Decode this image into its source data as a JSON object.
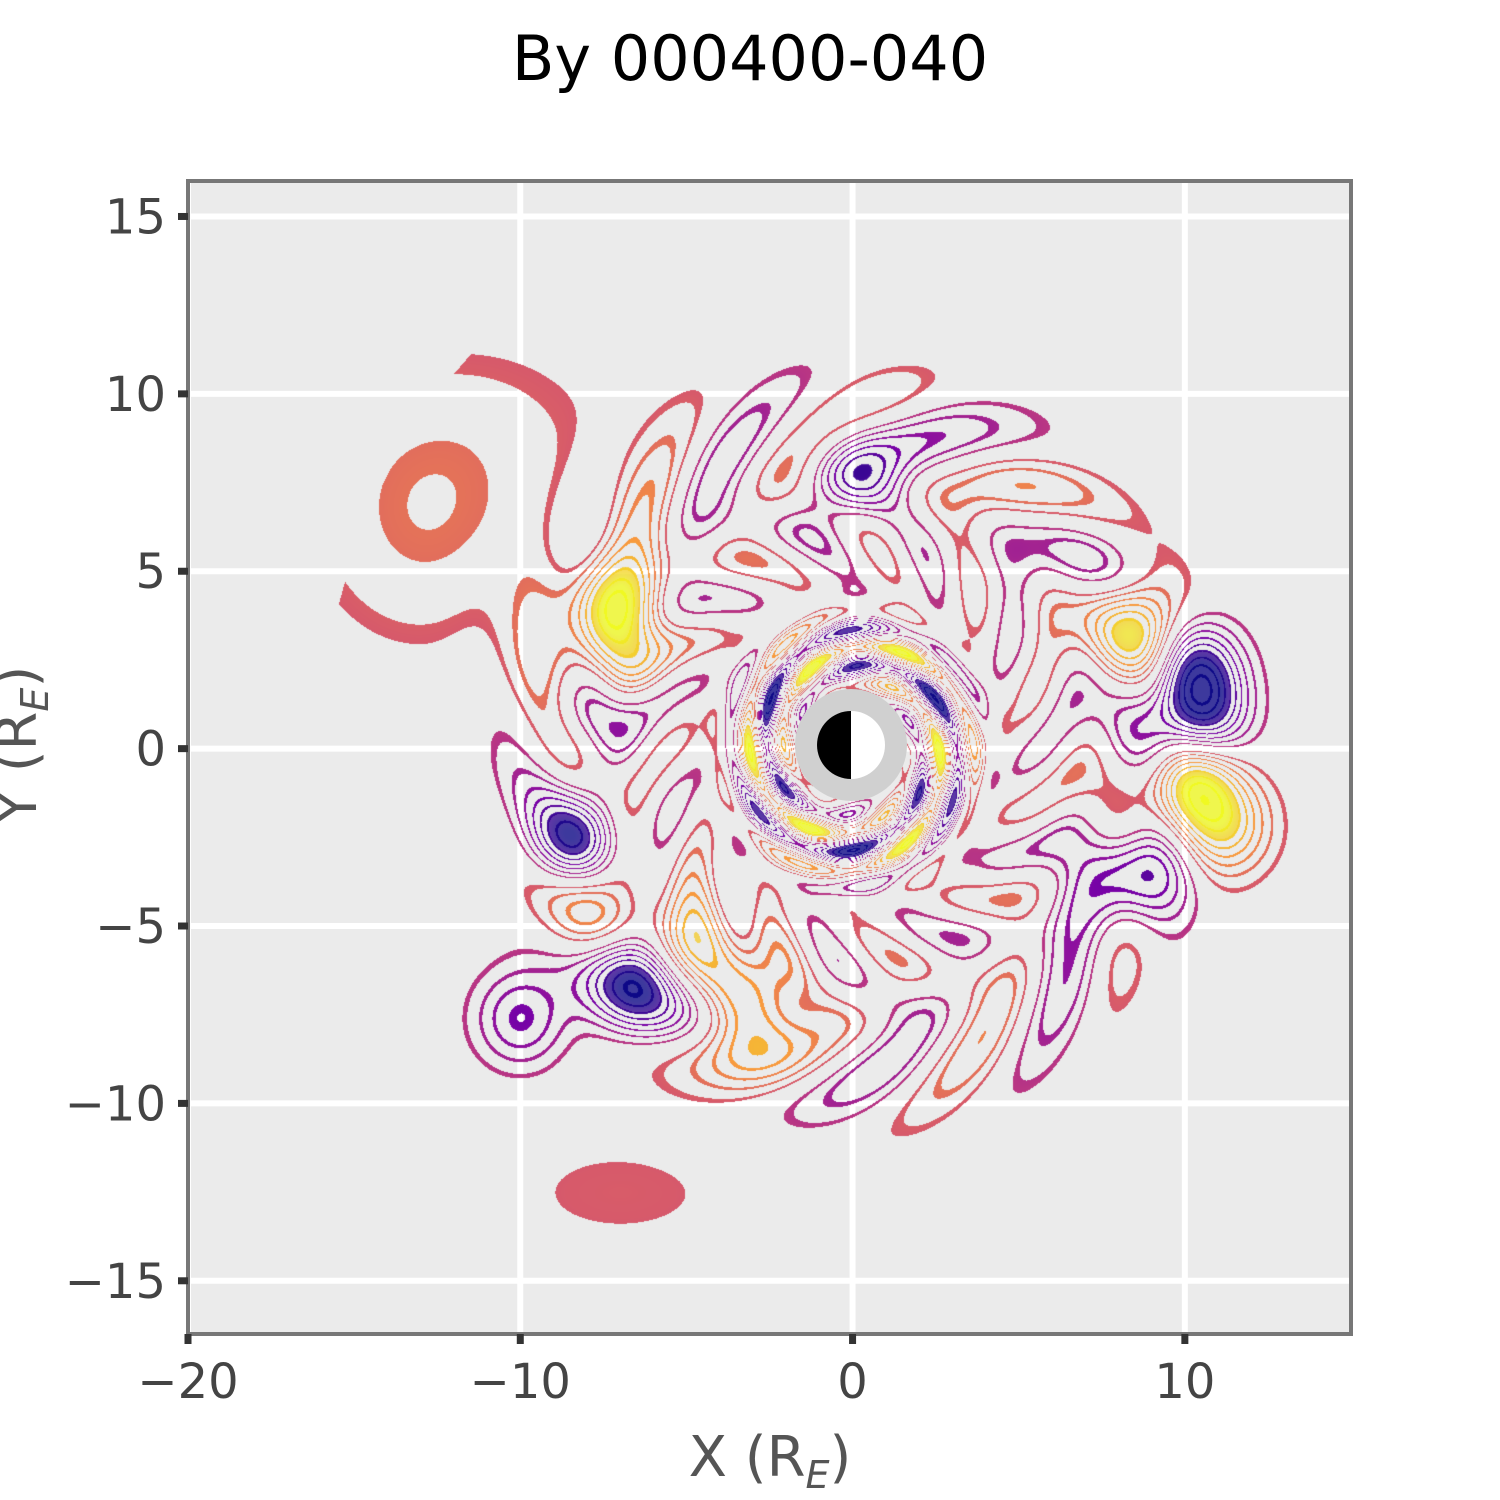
{
  "chart_data": {
    "type": "contour",
    "title": "By 000400-040",
    "xlabel": "X (R",
    "xlabel_sub": "E",
    "xlabel_close": ")",
    "ylabel": "Y (R",
    "ylabel_sub": "E",
    "ylabel_close": ")",
    "xlim": [
      -20,
      15
    ],
    "ylim": [
      -16.5,
      16
    ],
    "x_ticks": [
      -20,
      -10,
      0,
      10
    ],
    "x_tick_labels": [
      "−20",
      "−10",
      "0",
      "10"
    ],
    "y_ticks": [
      15,
      10,
      5,
      0,
      -5,
      -10,
      -15
    ],
    "y_tick_labels": [
      "15",
      "10",
      "5",
      "0",
      "−5",
      "−10",
      "−15"
    ],
    "grid": true,
    "colormap": "plasma",
    "colors": {
      "background": "#ebebeb",
      "grid": "#ffffff",
      "frame": "#777777",
      "contour_low": "#6a00a8",
      "contour_mid": "#cc4778",
      "contour_high": "#fdc527",
      "earth_ring": "#d0d0d0"
    },
    "features": [
      {
        "name": "inner-ring",
        "x": 0,
        "y": 0,
        "r_inner": 1.6,
        "r_outer": 4.0
      },
      {
        "name": "blob-left-upper",
        "x": -7.5,
        "y": 4.0,
        "strength": 0.9
      },
      {
        "name": "blob-left-mid",
        "x": -7.5,
        "y": 2.2,
        "strength": 0.8
      },
      {
        "name": "blob-left-purple",
        "x": -7.8,
        "y": 1.5,
        "strength": -0.7
      },
      {
        "name": "blob-left-lower-purple",
        "x": -8.2,
        "y": -2.6,
        "strength": -0.8
      },
      {
        "name": "blob-left-lower-orange",
        "x": -7.5,
        "y": -3.6,
        "strength": 0.6
      },
      {
        "name": "blob-sw-purple",
        "x": -6.5,
        "y": -6.2,
        "strength": -1.0
      },
      {
        "name": "blob-sw-orange",
        "x": -5.0,
        "y": -5.2,
        "strength": 0.6
      },
      {
        "name": "blob-south-orange",
        "x": -3.2,
        "y": -7.2,
        "strength": 0.8
      },
      {
        "name": "blob-east-orange",
        "x": 8.8,
        "y": 3.6,
        "strength": 0.8
      },
      {
        "name": "blob-east-purple-upper",
        "x": 10.2,
        "y": 2.2,
        "strength": -0.8
      },
      {
        "name": "blob-east-purple-mid",
        "x": 10.3,
        "y": 0.8,
        "strength": -0.9
      },
      {
        "name": "blob-east-yellow",
        "x": 10.0,
        "y": -1.0,
        "strength": 1.0
      },
      {
        "name": "blob-east-purple-lower",
        "x": 8.3,
        "y": -3.6,
        "strength": -0.9
      },
      {
        "name": "blob-se-orange",
        "x": 11.2,
        "y": -2.2,
        "strength": 0.6
      },
      {
        "name": "blob-west-outer-purple",
        "x": -10.0,
        "y": -7.6,
        "strength": -0.5
      },
      {
        "name": "blob-nw-outer",
        "x": -13.0,
        "y": 6.0,
        "strength": 0.2
      },
      {
        "name": "blob-north-purple",
        "x": 0.0,
        "y": 7.8,
        "strength": -0.5
      }
    ]
  }
}
